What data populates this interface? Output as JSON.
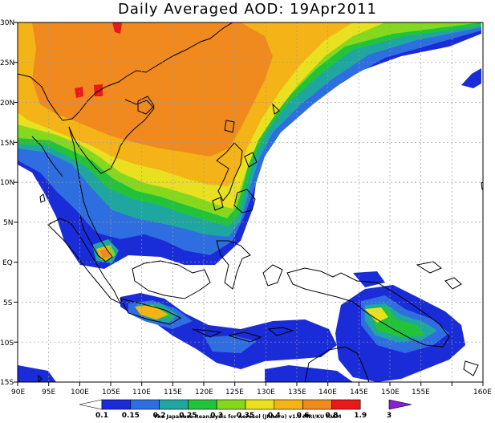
{
  "title": "Daily Averaged AOD: 19Apr2011",
  "lon_labels": [
    "90E",
    "95E",
    "100E",
    "105E",
    "110E",
    "115E",
    "120E",
    "125E",
    "130E",
    "135E",
    "140E",
    "145E",
    "150E",
    "155E",
    "160E"
  ],
  "lat_labels": [
    "30N",
    "25N",
    "20N",
    "15N",
    "10N",
    "5N",
    "EQ",
    "5S",
    "10S",
    "15S"
  ],
  "colorbar": {
    "labels": [
      "0.1",
      "0.15",
      "0.2",
      "0.25",
      "0.3",
      "0.35",
      "0.4",
      "0.6",
      "0.8",
      "1.9",
      "3"
    ],
    "colors": [
      "#ffffff",
      "#1a2bd8",
      "#2f6ee0",
      "#1fa6a0",
      "#22c33a",
      "#86d81e",
      "#e8e020",
      "#f4b418",
      "#f08a1e",
      "#e8191a",
      "#8a1fd4"
    ]
  },
  "credit": "The Japanese Reanalysis for Aerosol (JRAero) v1.0  MRI/KU RIAM"
}
